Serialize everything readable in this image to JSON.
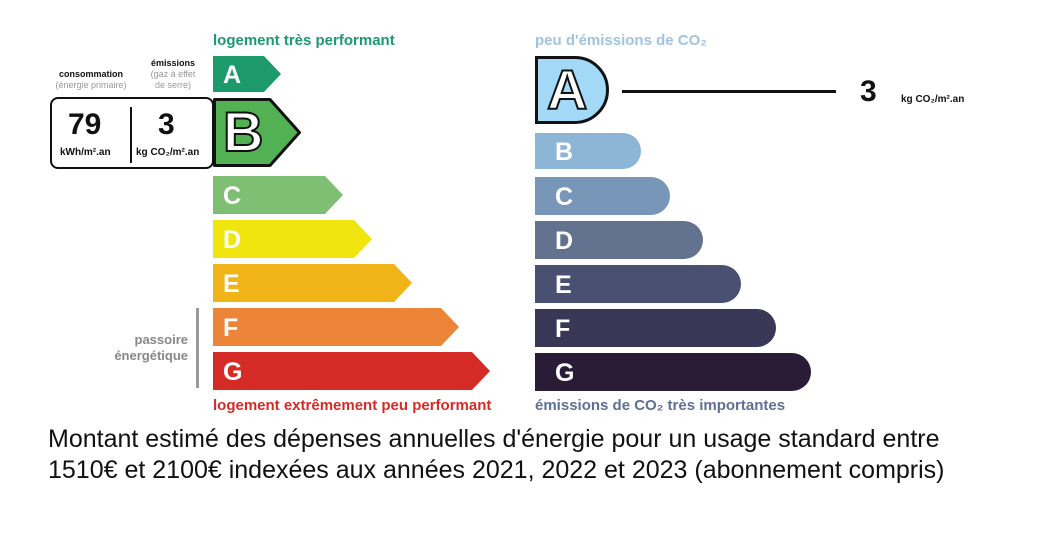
{
  "energy": {
    "top_label": "logement très performant",
    "bottom_label": "logement extrêmement peu performant",
    "top_color": "#1a9a6e",
    "bottom_color": "#d52b26",
    "classes": [
      {
        "letter": "A",
        "color": "#1d9a6c"
      },
      {
        "letter": "B",
        "color": "#52b153"
      },
      {
        "letter": "C",
        "color": "#7ebf73"
      },
      {
        "letter": "D",
        "color": "#f1e510"
      },
      {
        "letter": "E",
        "color": "#f0b418"
      },
      {
        "letter": "F",
        "color": "#ec8537"
      },
      {
        "letter": "G",
        "color": "#d52b26"
      }
    ],
    "selected": "B",
    "passoire_line1": "passoire",
    "passoire_line2": "énergétique"
  },
  "box": {
    "consumption_title": "consommation",
    "consumption_sub": "(énergie primaire)",
    "emissions_title": "émissions",
    "emissions_sub1": "(gaz à effet",
    "emissions_sub2": "de serre)",
    "consumption_value": "79",
    "consumption_unit": "kWh/m².an",
    "emissions_value": "3",
    "emissions_unit": "kg CO₂/m².an"
  },
  "climate": {
    "top_label": "peu d'émissions de CO₂",
    "bottom_label": "émissions de CO₂ très importantes",
    "top_color": "#9fc3e0",
    "bottom_color": "#5f6f95",
    "classes": [
      {
        "letter": "A",
        "color": "#a2d9f7"
      },
      {
        "letter": "B",
        "color": "#8db5d5"
      },
      {
        "letter": "C",
        "color": "#7796b8"
      },
      {
        "letter": "D",
        "color": "#62728f"
      },
      {
        "letter": "E",
        "color": "#4a5072"
      },
      {
        "letter": "F",
        "color": "#3a3655"
      },
      {
        "letter": "G",
        "color": "#2a1c37"
      }
    ],
    "selected": "A",
    "value": "3",
    "unit": "kg CO₂/m².an"
  },
  "footer": {
    "text": "Montant estimé des dépenses annuelles d'énergie pour un usage standard entre 1510€ et 2100€ indexées aux années 2021, 2022 et 2023 (abonnement compris)"
  }
}
